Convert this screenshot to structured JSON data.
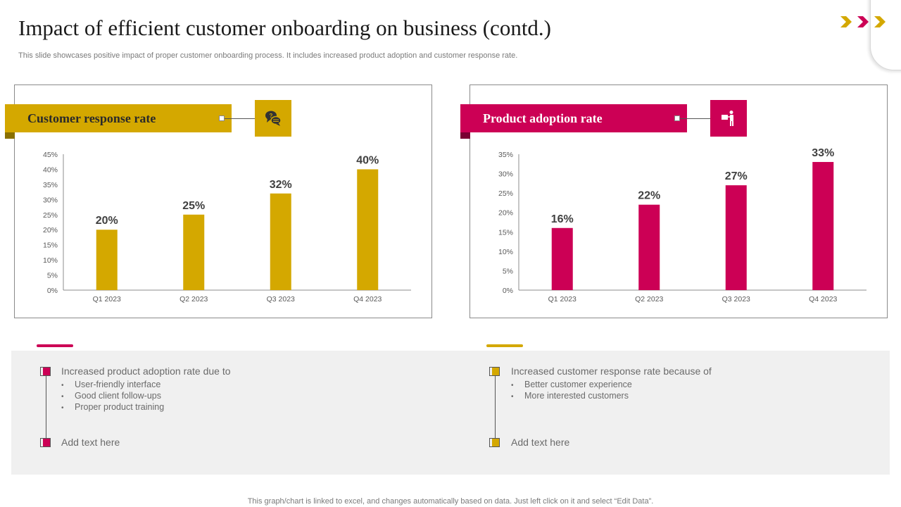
{
  "title": "Impact of efficient customer onboarding on business (contd.)",
  "subtitle": "This slide showcases positive impact of proper customer onboarding process. It includes increased product adoption and customer response rate.",
  "footer": "This graph/chart is linked to excel,  and changes automatically based on data. Just left click on it and select “Edit Data”.",
  "colors": {
    "gold": "#d4a800",
    "crimson": "#cc0055",
    "panel_bg": "#f0f0f0"
  },
  "icons": {
    "left_banner": "chat-bubbles-icon",
    "right_banner": "person-presenting-icon",
    "corner": "chevrons-right-icon"
  },
  "panels": [
    {
      "banner": "Customer response rate"
    },
    {
      "banner": "Product adoption rate"
    }
  ],
  "chart_data": [
    {
      "type": "bar",
      "title": "Customer response rate",
      "categories": [
        "Q1 2023",
        "Q2 2023",
        "Q3 2023",
        "Q4 2023"
      ],
      "values": [
        20,
        25,
        32,
        40
      ],
      "value_labels": [
        "20%",
        "25%",
        "32%",
        "40%"
      ],
      "ylim": [
        0,
        45
      ],
      "yticks": [
        "0%",
        "5%",
        "10%",
        "15%",
        "20%",
        "25%",
        "30%",
        "35%",
        "40%",
        "45%"
      ],
      "color": "#d4a800",
      "xlabel": "",
      "ylabel": ""
    },
    {
      "type": "bar",
      "title": "Product adoption rate",
      "categories": [
        "Q1 2023",
        "Q2 2023",
        "Q3 2023",
        "Q4 2023"
      ],
      "values": [
        16,
        22,
        27,
        33
      ],
      "value_labels": [
        "16%",
        "22%",
        "27%",
        "33%"
      ],
      "ylim": [
        0,
        35
      ],
      "yticks": [
        "0%",
        "5%",
        "10%",
        "15%",
        "20%",
        "25%",
        "30%",
        "35%"
      ],
      "color": "#cc0055",
      "xlabel": "",
      "ylabel": ""
    }
  ],
  "notes": [
    {
      "heading": "Increased product adoption rate due to",
      "bullets": [
        "User-friendly  interface",
        "Good client follow-ups",
        "Proper product training"
      ],
      "add_text": "Add text here"
    },
    {
      "heading": "Increased customer response rate because of",
      "bullets": [
        "Better customer experience",
        "More interested customers"
      ],
      "add_text": "Add text here"
    }
  ]
}
